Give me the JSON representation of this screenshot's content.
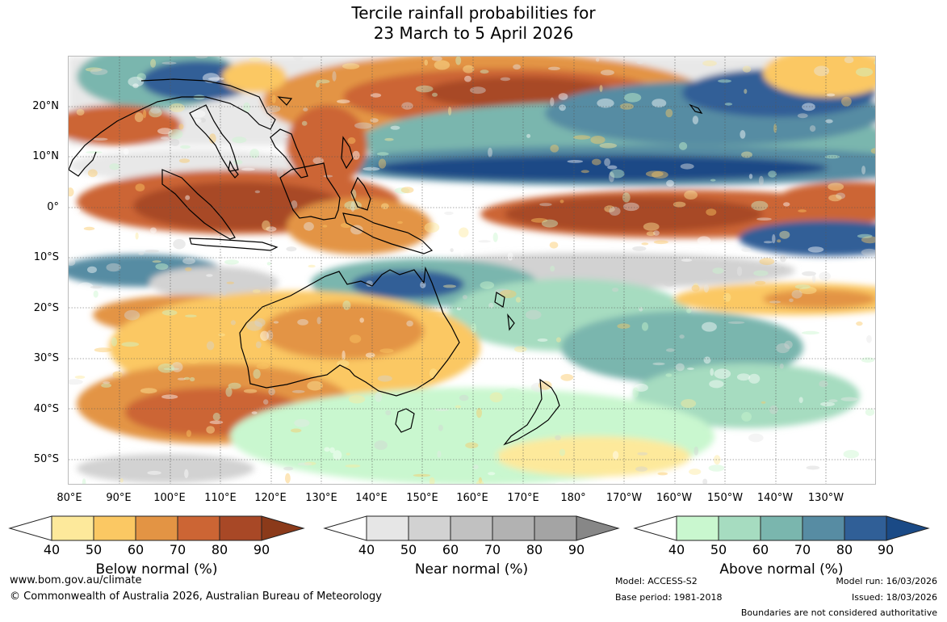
{
  "title": {
    "line1": "Tercile rainfall probabilities for",
    "line2": "23 March to 5 April 2026"
  },
  "map": {
    "lat_labels": [
      "20°N",
      "10°N",
      "0°",
      "10°S",
      "20°S",
      "30°S",
      "40°S",
      "50°S"
    ],
    "lon_labels": [
      "80°E",
      "90°E",
      "100°E",
      "110°E",
      "120°E",
      "130°E",
      "140°E",
      "150°E",
      "160°E",
      "170°E",
      "180°",
      "170°W",
      "160°W",
      "150°W",
      "140°W",
      "130°W"
    ],
    "gridlines": "dotted"
  },
  "legends": [
    {
      "title": "Below normal (%)",
      "ticks": [
        "40",
        "50",
        "60",
        "70",
        "80",
        "90"
      ],
      "colors": [
        "#ffffff",
        "#fde99b",
        "#fbc863",
        "#e39444",
        "#cc6534",
        "#a84826",
        "#8b3a1a"
      ]
    },
    {
      "title": "Near normal (%)",
      "ticks": [
        "40",
        "50",
        "60",
        "70",
        "80",
        "90"
      ],
      "colors": [
        "#ffffff",
        "#e6e6e6",
        "#d2d2d2",
        "#c1c1c1",
        "#b2b2b2",
        "#a4a4a4",
        "#878787"
      ]
    },
    {
      "title": "Above normal (%)",
      "ticks": [
        "40",
        "50",
        "60",
        "70",
        "80",
        "90"
      ],
      "colors": [
        "#ffffff",
        "#c9f7cf",
        "#a6dcc0",
        "#7ab6ae",
        "#578ca3",
        "#305f97",
        "#1a4a86"
      ]
    }
  ],
  "footer": {
    "website": "www.bom.gov.au/climate",
    "copyright": "© Commonwealth of Australia 2026, Australian Bureau of Meteorology",
    "model": "Model: ACCESS-S2",
    "base_period": "Base period: 1981-2018",
    "model_run": "Model run: 16/03/2026",
    "issued": "Issued: 18/03/2026",
    "disclaimer": "Boundaries are not considered authoritative"
  }
}
